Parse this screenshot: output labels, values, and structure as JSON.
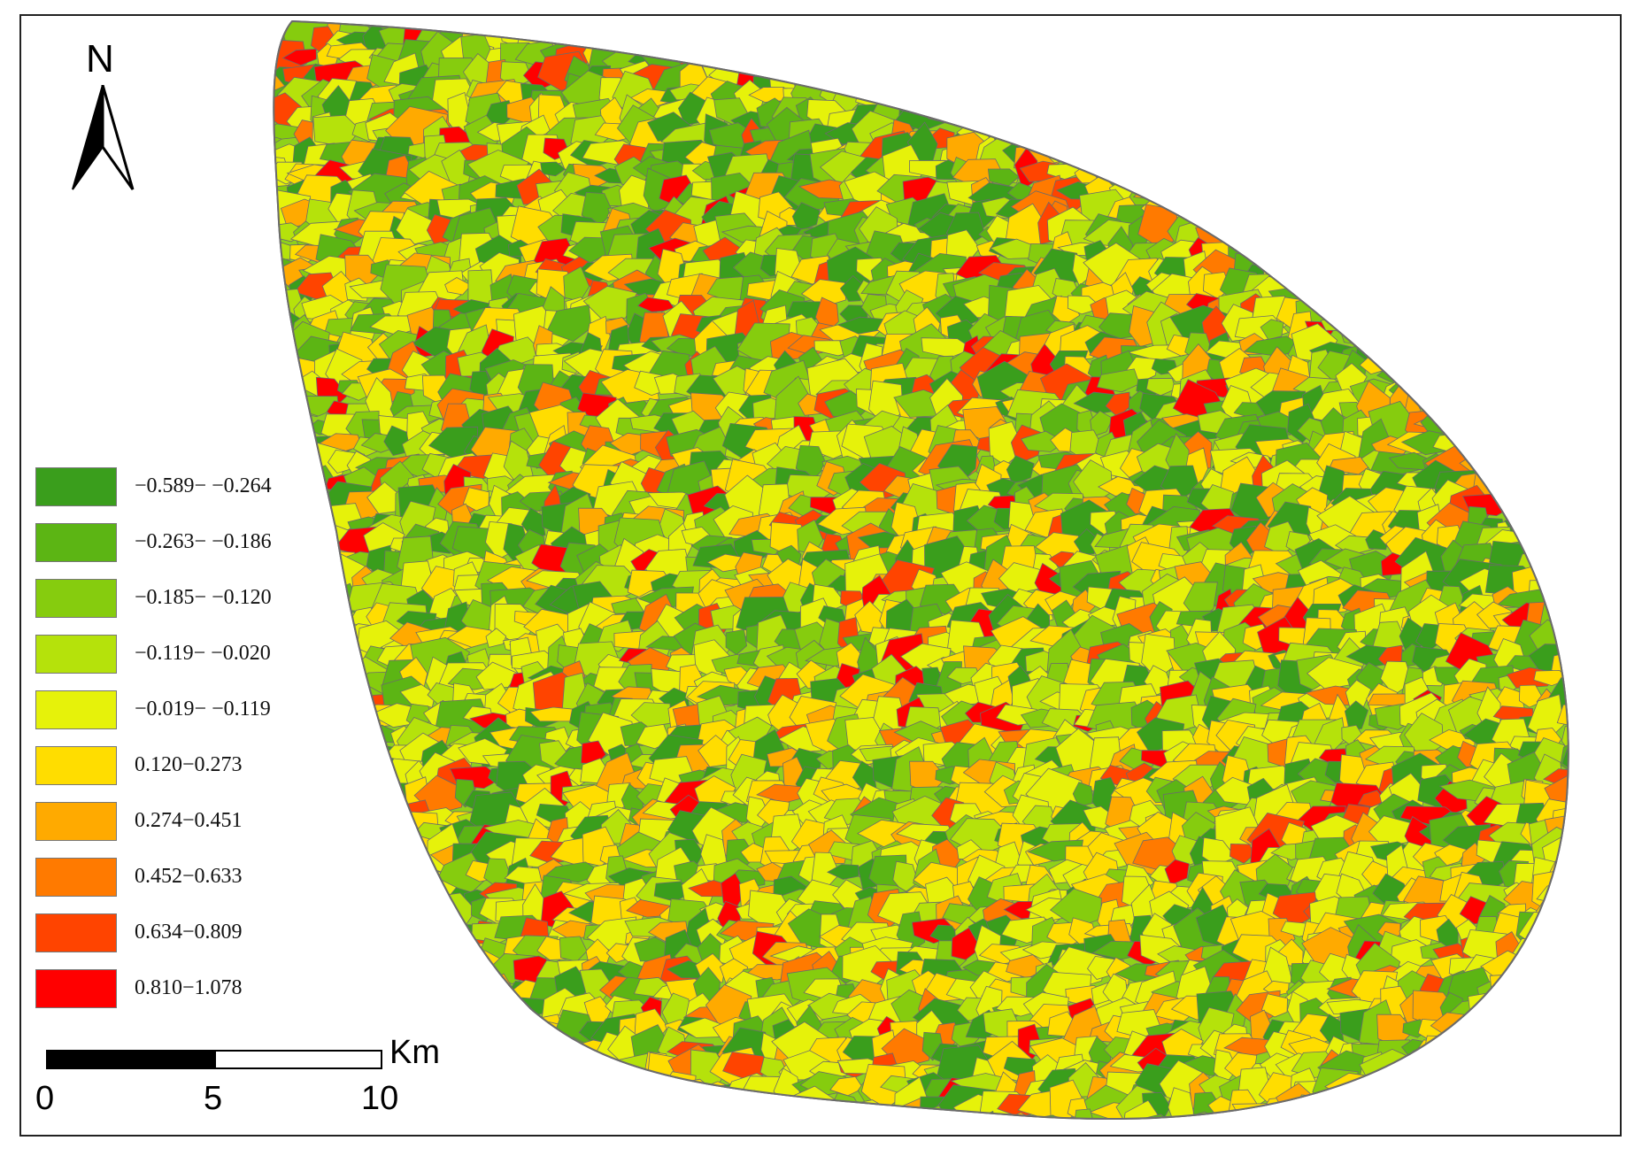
{
  "north": {
    "label": "N",
    "icon": "north-arrow-icon"
  },
  "legend": {
    "items": [
      {
        "label": "−0.589− −0.264",
        "color": "#3a9e1c"
      },
      {
        "label": "−0.263− −0.186",
        "color": "#5cb514"
      },
      {
        "label": "−0.185− −0.120",
        "color": "#86cc0e"
      },
      {
        "label": "−0.119− −0.020",
        "color": "#b5e20b"
      },
      {
        "label": "−0.019− −0.119",
        "color": "#e6f20a"
      },
      {
        "label": "0.120−0.273",
        "color": "#ffdd00"
      },
      {
        "label": "0.274−0.451",
        "color": "#ffaa00"
      },
      {
        "label": "0.452−0.633",
        "color": "#ff7a00"
      },
      {
        "label": "0.634−0.809",
        "color": "#ff4400"
      },
      {
        "label": "0.810−1.078",
        "color": "#ff0000"
      }
    ]
  },
  "scale_bar": {
    "unit": "Km",
    "ticks": [
      "0",
      "5",
      "10"
    ]
  },
  "map": {
    "boundary_color": "#6b6b6b",
    "land_color": "#8fd11a"
  }
}
